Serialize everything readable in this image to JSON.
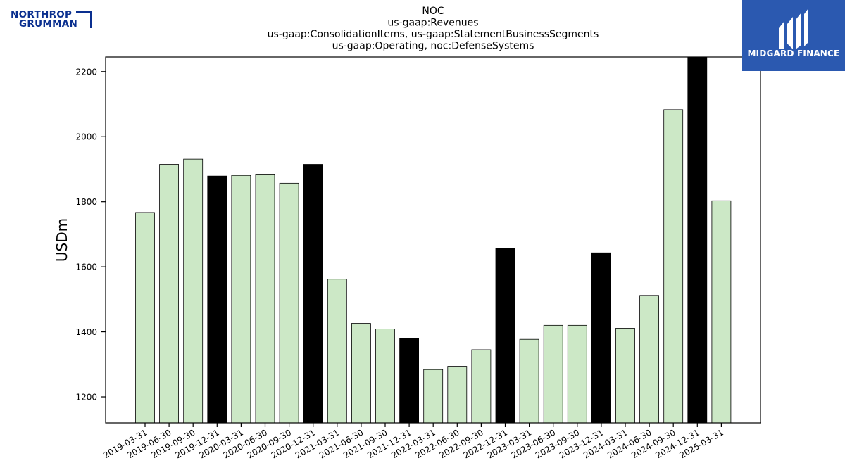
{
  "brand": {
    "company_logo": "NORTHROP GRUMMAN",
    "company_line1": "NORTHROP",
    "company_line2": "GRUMMAN",
    "publisher_name": "MIDGARD FINANCE"
  },
  "colors": {
    "regular_bar": "#cce8c6",
    "q4_bar": "#000000",
    "publisher_bg": "#2b59b0",
    "company_blue": "#0a2f8f"
  },
  "chart_data": {
    "type": "bar",
    "title_lines": [
      "NOC",
      "us-gaap:Revenues",
      "us-gaap:ConsolidationItems, us-gaap:StatementBusinessSegments",
      "us-gaap:Operating, noc:DefenseSystems"
    ],
    "xlabel": "",
    "ylabel": "USDm",
    "ylim": [
      1120,
      2245
    ],
    "yticks": [
      1200,
      1400,
      1600,
      1800,
      2000,
      2200
    ],
    "grid": false,
    "legend": "none",
    "categories": [
      "2019-03-31",
      "2019-06-30",
      "2019-09-30",
      "2019-12-31",
      "2020-03-31",
      "2020-06-30",
      "2020-09-30",
      "2020-12-31",
      "2021-03-31",
      "2021-06-30",
      "2021-09-30",
      "2021-12-31",
      "2022-03-31",
      "2022-06-30",
      "2022-09-30",
      "2022-12-31",
      "2023-03-31",
      "2023-06-30",
      "2023-09-30",
      "2023-12-31",
      "2024-03-31",
      "2024-06-30",
      "2024-09-30",
      "2024-12-31",
      "2025-03-31"
    ],
    "values": [
      1767,
      1915,
      1931,
      1879,
      1881,
      1885,
      1857,
      1915,
      1562,
      1426,
      1409,
      1379,
      1284,
      1294,
      1345,
      1656,
      1377,
      1420,
      1420,
      1643,
      1411,
      1512,
      2083,
      2246,
      1803
    ],
    "highlight": [
      false,
      false,
      false,
      true,
      false,
      false,
      false,
      true,
      false,
      false,
      false,
      true,
      false,
      false,
      false,
      true,
      false,
      false,
      false,
      true,
      false,
      false,
      false,
      true,
      false
    ]
  }
}
